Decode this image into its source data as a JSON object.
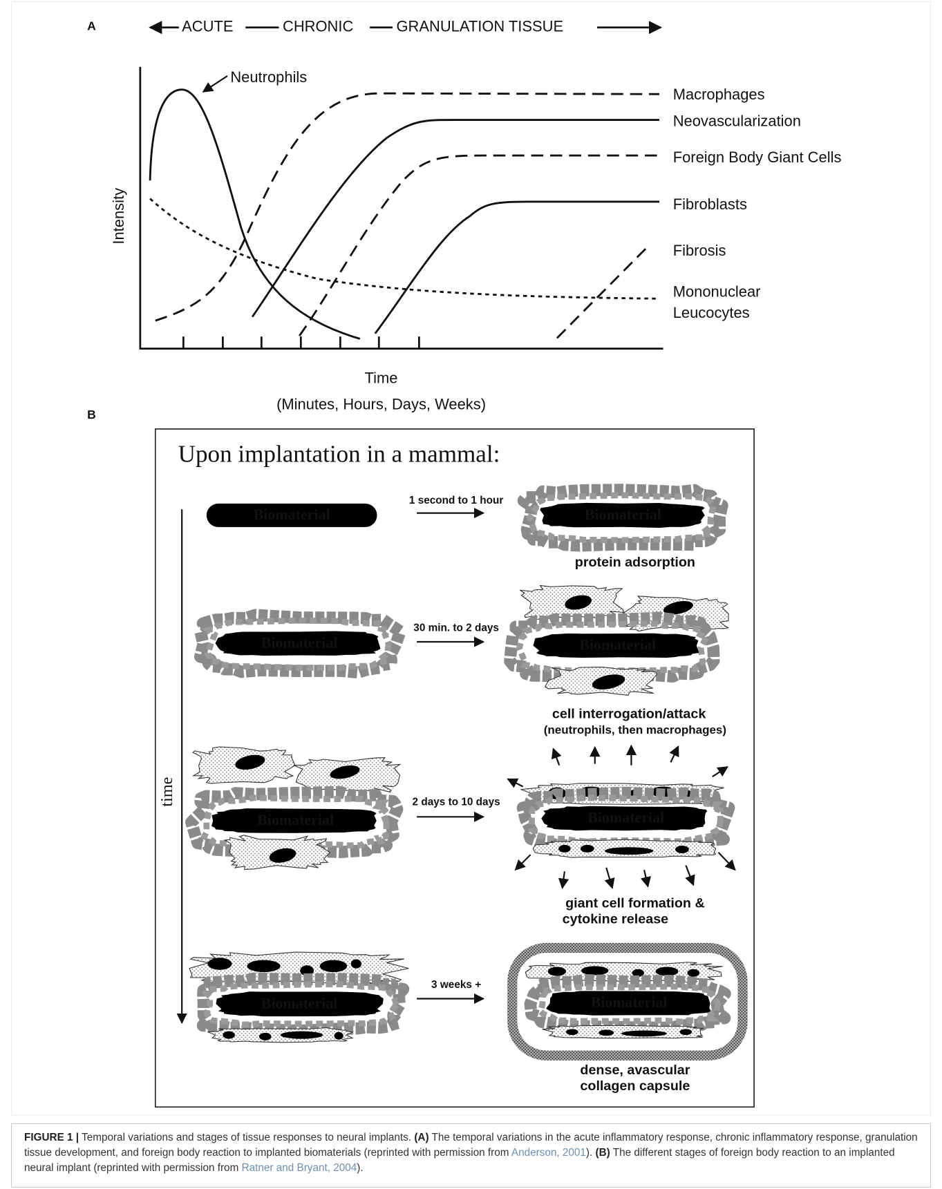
{
  "panel_a": {
    "label": "A",
    "phases": [
      "ACUTE",
      "CHRONIC",
      "GRANULATION TISSUE"
    ],
    "y_axis_label": "Intensity",
    "x_axis_label": "Time",
    "x_axis_sublabel": "(Minutes, Hours, Days, Weeks)",
    "curve_labels": [
      "Neutrophils",
      "Macrophages",
      "Neovascularization",
      "Foreign Body Giant Cells",
      "Fibroblasts",
      "Fibrosis",
      "Mononuclear",
      "Leucocytes"
    ]
  },
  "panel_b": {
    "label": "B",
    "title": "Upon implantation in a mammal:",
    "time_label": "time",
    "material": "Biomaterial",
    "stages": [
      {
        "duration": "1 second to 1 hour",
        "outcome": [
          "protein adsorption"
        ]
      },
      {
        "duration": "30 min. to 2 days",
        "outcome": [
          "cell interrogation/attack",
          "(neutrophils, then macrophages)"
        ]
      },
      {
        "duration": "2 days to 10 days",
        "outcome": [
          "giant cell formation &",
          "cytokine release"
        ]
      },
      {
        "duration": "3 weeks +",
        "outcome": [
          "dense, avascular",
          "collagen capsule"
        ]
      }
    ]
  },
  "caption": {
    "label": "FIGURE 1 |",
    "text": [
      " Temporal variations and stages of tissue responses to neural implants. ",
      "(A)",
      " The temporal variations in the acute inflammatory response, chronic inflammatory response, granulation tissue development, and foreign body reaction to implanted biomaterials (reprinted with permission from ",
      "Anderson, 2001",
      "). ",
      "(B)",
      " The different stages of foreign body reaction to an implanted neural implant (reprinted with permission from ",
      "Ratner and Bryant, 2004",
      ")."
    ]
  }
}
